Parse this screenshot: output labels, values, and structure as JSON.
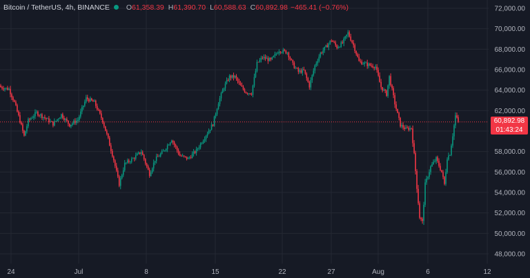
{
  "header": {
    "symbol": "Bitcoin / TetherUS, 4h, BINANCE",
    "open_label": "O",
    "open": "61,358.39",
    "high_label": "H",
    "high": "61,390.70",
    "low_label": "L",
    "low": "60,588.63",
    "close_label": "C",
    "close": "60,892.98",
    "change": "−465.41 (−0.76%)"
  },
  "price_tag": {
    "price": "60,892.98",
    "countdown": "01:43:24"
  },
  "colors": {
    "up": "#089981",
    "down": "#f23645",
    "background": "#161a25",
    "grid": "#242833",
    "text": "#b2b5be"
  },
  "chart_data": {
    "type": "candlestick",
    "interval": "4h",
    "y_ticks": [
      "72,000.00",
      "70,000.00",
      "68,000.00",
      "66,000.00",
      "64,000.00",
      "62,000.00",
      "60,000.00",
      "58,000.00",
      "56,000.00",
      "54,000.00",
      "52,000.00",
      "50,000.00",
      "48,000.00"
    ],
    "x_ticks": [
      "24",
      "Jul",
      "8",
      "15",
      "22",
      "27",
      "Aug",
      "6",
      "12"
    ],
    "ylim": [
      47400,
      73200
    ],
    "last_price": 60892.98,
    "close_path": [
      [
        0,
        64300
      ],
      [
        6,
        64100
      ],
      [
        10,
        62800
      ],
      [
        14,
        61000
      ],
      [
        17,
        59500
      ],
      [
        20,
        61000
      ],
      [
        26,
        61800
      ],
      [
        32,
        61300
      ],
      [
        38,
        60700
      ],
      [
        44,
        61600
      ],
      [
        50,
        60600
      ],
      [
        56,
        61100
      ],
      [
        62,
        63200
      ],
      [
        68,
        62800
      ],
      [
        74,
        61000
      ],
      [
        78,
        59200
      ],
      [
        82,
        57200
      ],
      [
        86,
        54800
      ],
      [
        90,
        56800
      ],
      [
        96,
        57300
      ],
      [
        102,
        58000
      ],
      [
        108,
        55800
      ],
      [
        112,
        57200
      ],
      [
        118,
        58000
      ],
      [
        124,
        59200
      ],
      [
        130,
        57600
      ],
      [
        136,
        57300
      ],
      [
        142,
        58100
      ],
      [
        148,
        59400
      ],
      [
        154,
        60700
      ],
      [
        158,
        62800
      ],
      [
        162,
        64300
      ],
      [
        166,
        65300
      ],
      [
        170,
        65300
      ],
      [
        174,
        64400
      ],
      [
        178,
        63800
      ],
      [
        182,
        63700
      ],
      [
        186,
        66600
      ],
      [
        190,
        67200
      ],
      [
        196,
        66900
      ],
      [
        202,
        67900
      ],
      [
        208,
        67700
      ],
      [
        212,
        66500
      ],
      [
        216,
        65800
      ],
      [
        220,
        65900
      ],
      [
        224,
        64400
      ],
      [
        228,
        66400
      ],
      [
        232,
        67600
      ],
      [
        236,
        68200
      ],
      [
        240,
        68900
      ],
      [
        244,
        68200
      ],
      [
        248,
        68600
      ],
      [
        252,
        69600
      ],
      [
        256,
        68400
      ],
      [
        260,
        66800
      ],
      [
        266,
        66500
      ],
      [
        272,
        66300
      ],
      [
        276,
        64300
      ],
      [
        280,
        63600
      ],
      [
        282,
        65300
      ],
      [
        286,
        62700
      ],
      [
        290,
        60600
      ],
      [
        294,
        60200
      ],
      [
        298,
        60300
      ],
      [
        300,
        57700
      ],
      [
        302,
        54500
      ],
      [
        304,
        51600
      ],
      [
        306,
        51100
      ],
      [
        308,
        54800
      ],
      [
        312,
        56500
      ],
      [
        316,
        57300
      ],
      [
        320,
        56000
      ],
      [
        322,
        54800
      ],
      [
        324,
        57400
      ],
      [
        326,
        57800
      ],
      [
        328,
        59600
      ],
      [
        330,
        61500
      ],
      [
        332,
        60893
      ]
    ]
  }
}
